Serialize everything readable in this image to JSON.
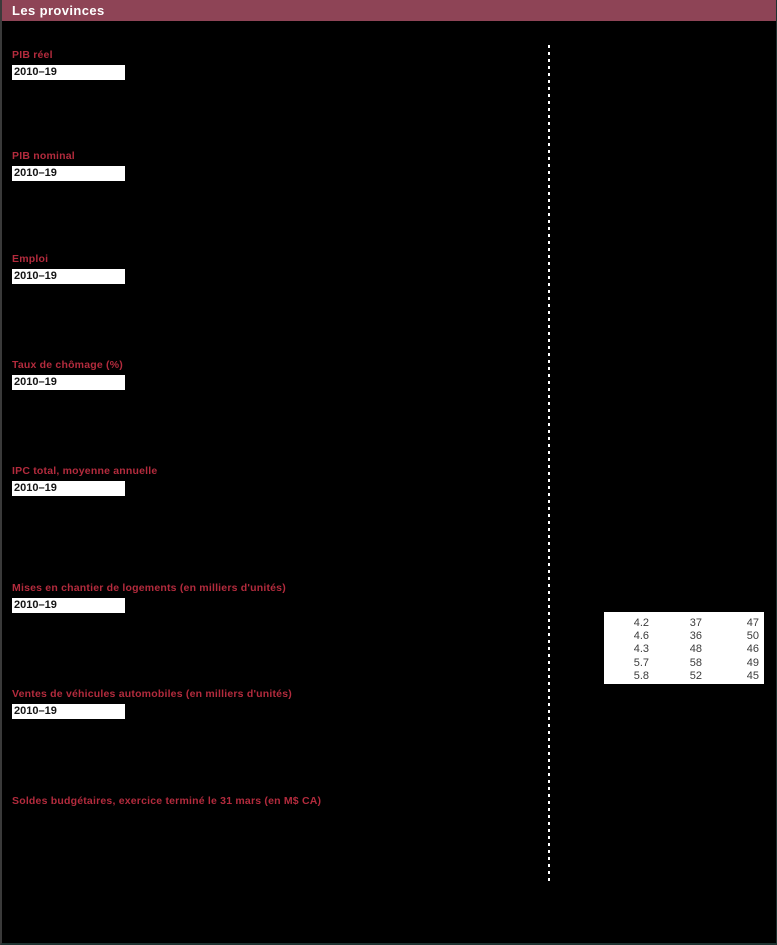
{
  "header": {
    "title": "Les provinces"
  },
  "colors": {
    "header_bg": "#8e4456",
    "section_label": "#b32b3d",
    "page_bg": "#000000",
    "box_bg": "#ffffff"
  },
  "sections": [
    {
      "label": "PIB réel",
      "range": "2010–19"
    },
    {
      "label": "PIB nominal",
      "range": "2010–19"
    },
    {
      "label": "Emploi",
      "range": "2010–19"
    },
    {
      "label": "Taux de chômage (%)",
      "range": "2010–19"
    },
    {
      "label": "IPC total, moyenne annuelle",
      "range": "2010–19"
    },
    {
      "label": "Mises en chantier de logements (en milliers d'unités)",
      "range": "2010–19"
    },
    {
      "label": "Ventes de véhicules automobiles (en milliers d'unités)",
      "range": "2010–19"
    },
    {
      "label": "Soldes budgétaires, exercice terminé le 31 mars (en M$ CA)",
      "range": null
    }
  ],
  "table": {
    "rows": [
      [
        "4.2",
        "37",
        "47"
      ],
      [
        "4.6",
        "36",
        "50"
      ],
      [
        "4.3",
        "48",
        "46"
      ],
      [
        "5.7",
        "58",
        "49"
      ],
      [
        "5.8",
        "52",
        "45"
      ]
    ]
  }
}
